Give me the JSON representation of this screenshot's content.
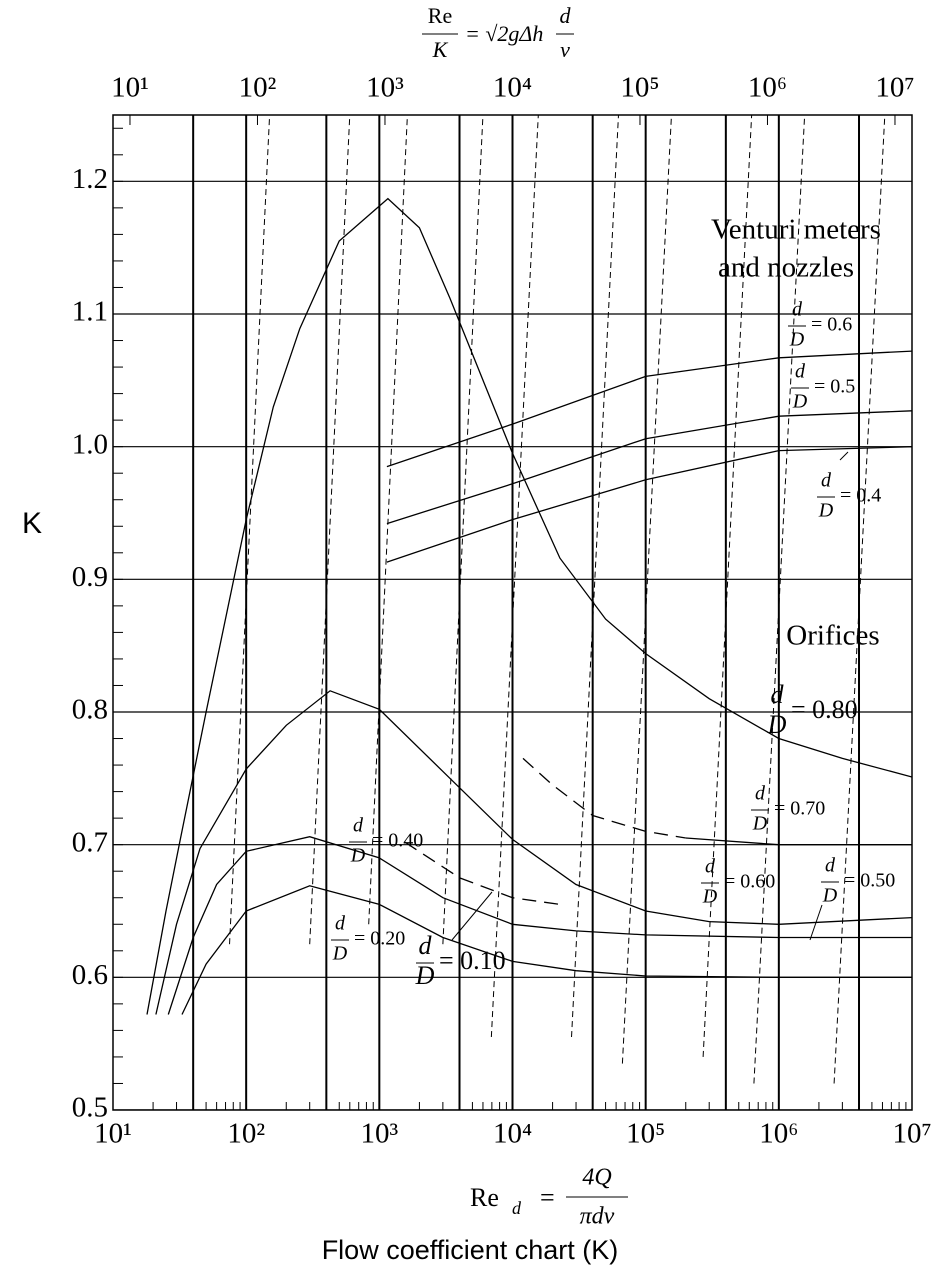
{
  "chart_data": {
    "type": "line",
    "caption": "Flow coefficient chart (K)",
    "ylabel": "K",
    "xlabel": {
      "lhs": "Re",
      "sub": "d",
      "eq": "=",
      "numerator": "4Q",
      "denominator": "πdv"
    },
    "x2label": {
      "numerator": "Re",
      "denominator": "K",
      "rhs": "= √2gΔh",
      "rhs_numerator": "d",
      "rhs_denominator": "v"
    },
    "region_labels": [
      "Venturi meters",
      "and nozzles",
      "Orifices"
    ],
    "log_x": true,
    "xlim": [
      10,
      10000000
    ],
    "xticks": [
      {
        "value": 10,
        "label": "10¹"
      },
      {
        "value": 100,
        "label": "10²"
      },
      {
        "value": 1000,
        "label": "10³"
      },
      {
        "value": 10000,
        "label": "10⁴"
      },
      {
        "value": 100000,
        "label": "10⁵"
      },
      {
        "value": 1000000,
        "label": "10⁶"
      },
      {
        "value": 10000000,
        "label": "10⁷"
      }
    ],
    "x2lim": [
      7.36,
      13600000
    ],
    "x2ticks": [
      {
        "value": 10,
        "label": "10¹"
      },
      {
        "value": 100,
        "label": "10²"
      },
      {
        "value": 1000,
        "label": "10³"
      },
      {
        "value": 10000,
        "label": "10⁴"
      },
      {
        "value": 100000,
        "label": "10⁵"
      },
      {
        "value": 1000000,
        "label": "10⁶"
      },
      {
        "value": 10000000,
        "label": "10⁷"
      }
    ],
    "xgrid": [
      40,
      100,
      400,
      1000,
      4000,
      10000,
      40000,
      100000,
      400000,
      1000000,
      4000000
    ],
    "ylim": [
      0.5,
      1.25
    ],
    "yticks": [
      0.5,
      0.6,
      0.7,
      0.8,
      0.9,
      {
        "value": 1,
        "label": "1.0"
      },
      1.1,
      1.2
    ],
    "yminor_step": 0.02,
    "grid": true,
    "color": "#000000",
    "series": [
      {
        "style": "solid",
        "x": [
          18,
          25,
          32,
          50,
          100,
          160,
          253,
          500,
          1160,
          2000,
          3390,
          6000,
          10000,
          22700,
          50000,
          100000,
          300000,
          1000000,
          3000000,
          10000000
        ],
        "y": [
          0.572,
          0.65,
          0.704,
          0.8,
          0.945,
          1.03,
          1.089,
          1.155,
          1.187,
          1.165,
          1.112,
          1.05,
          0.995,
          0.916,
          0.87,
          0.844,
          0.81,
          0.78,
          0.765,
          0.751
        ]
      },
      {
        "style": "solid",
        "x": [
          21,
          30,
          45,
          100,
          200,
          427,
          1000,
          3390,
          10000,
          30000,
          100000,
          300000,
          1000000,
          10000000
        ],
        "y": [
          0.572,
          0.64,
          0.697,
          0.757,
          0.79,
          0.816,
          0.802,
          0.75,
          0.704,
          0.67,
          0.65,
          0.642,
          0.64,
          0.645
        ]
      },
      {
        "style": "solid",
        "x": [
          26,
          40,
          60,
          100,
          300,
          1000,
          3000,
          10000,
          30000,
          100000,
          1000000,
          10000000
        ],
        "y": [
          0.572,
          0.63,
          0.67,
          0.695,
          0.706,
          0.69,
          0.66,
          0.64,
          0.635,
          0.632,
          0.63,
          0.63
        ]
      },
      {
        "style": "solid",
        "x": [
          33,
          50,
          100,
          300,
          1000,
          3000,
          10000,
          30000,
          100000,
          1000000,
          10000000
        ],
        "y": [
          0.572,
          0.61,
          0.65,
          0.669,
          0.655,
          0.63,
          0.612,
          0.605,
          0.601,
          0.6,
          0.6
        ]
      },
      {
        "style": "dashed",
        "x": [
          12000,
          20000,
          40000,
          100000,
          200000
        ],
        "y": [
          0.765,
          0.745,
          0.722,
          0.71,
          0.705
        ]
      },
      {
        "style": "solid",
        "x": [
          200000,
          1000000,
          10000000
        ],
        "y": [
          0.705,
          0.7,
          0.7
        ]
      },
      {
        "style": "dashed",
        "x": [
          1550,
          4000,
          10000,
          22700
        ],
        "y": [
          0.702,
          0.675,
          0.66,
          0.655
        ]
      },
      {
        "style": "solid",
        "x": [
          1140,
          10000,
          100000,
          1000000,
          10000000
        ],
        "y": [
          0.985,
          1.017,
          1.053,
          1.067,
          1.072
        ]
      },
      {
        "style": "solid",
        "x": [
          1140,
          10000,
          100000,
          1000000,
          10000000
        ],
        "y": [
          0.942,
          0.972,
          1.006,
          1.023,
          1.027
        ]
      },
      {
        "style": "solid",
        "x": [
          1140,
          10000,
          100000,
          1000000,
          10000000
        ],
        "y": [
          0.913,
          0.945,
          0.975,
          0.997,
          1.0
        ]
      }
    ],
    "reference_lines": [
      {
        "re_over_k": 120,
        "k_min": 0.625
      },
      {
        "re_over_k": 480,
        "k_min": 0.625
      },
      {
        "re_over_k": 1300,
        "k_min": 0.64
      },
      {
        "re_over_k": 4800,
        "k_min": 0.625
      },
      {
        "re_over_k": 12500,
        "k_min": 0.555
      },
      {
        "re_over_k": 50000,
        "k_min": 0.555
      },
      {
        "re_over_k": 125000,
        "k_min": 0.535
      },
      {
        "re_over_k": 500000,
        "k_min": 0.54
      },
      {
        "re_over_k": 1250000,
        "k_min": 0.52
      },
      {
        "re_over_k": 5000000,
        "k_min": 0.52
      }
    ],
    "annotations": [
      {
        "numerator": "d",
        "denominator": "D",
        "text": "= 0.6"
      },
      {
        "numerator": "d",
        "denominator": "D",
        "text": "= 0.5"
      },
      {
        "numerator": "d",
        "denominator": "D",
        "text": "= 0.4"
      },
      {
        "numerator": "d",
        "denominator": "D",
        "text": "= 0.80"
      },
      {
        "numerator": "d",
        "denominator": "D",
        "text": "= 0.70"
      },
      {
        "numerator": "d",
        "denominator": "D",
        "text": "= 0.60"
      },
      {
        "numerator": "d",
        "denominator": "D",
        "text": "= 0.50"
      },
      {
        "numerator": "d",
        "denominator": "D",
        "text": "= 0.40"
      },
      {
        "numerator": "d",
        "denominator": "D",
        "text": "= 0.20"
      },
      {
        "numerator": "d",
        "denominator": "D",
        "text": "= 0.10"
      }
    ]
  }
}
